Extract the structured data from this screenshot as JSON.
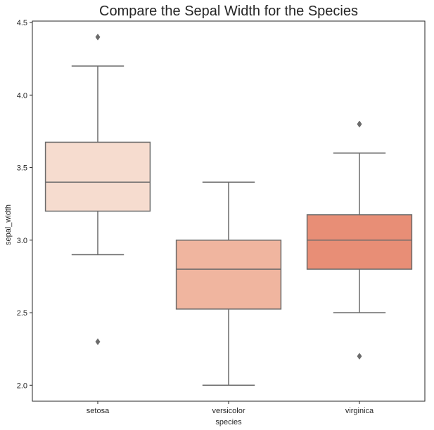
{
  "chart_data": {
    "type": "box",
    "title": "Compare the Sepal Width for the Species",
    "xlabel": "species",
    "ylabel": "sepal_width",
    "ylim": [
      1.89,
      4.51
    ],
    "yticks": [
      2.0,
      2.5,
      3.0,
      3.5,
      4.0,
      4.5
    ],
    "ytick_labels": [
      "2.0",
      "2.5",
      "3.0",
      "3.5",
      "4.0",
      "4.5"
    ],
    "grid": false,
    "categories": [
      "setosa",
      "versicolor",
      "virginica"
    ],
    "boxes": [
      {
        "name": "setosa",
        "whisker_low": 2.9,
        "q1": 3.2,
        "median": 3.4,
        "q3": 3.675,
        "whisker_high": 4.2,
        "outliers": [
          4.4,
          2.3
        ],
        "color": "#f6dccf"
      },
      {
        "name": "versicolor",
        "whisker_low": 2.0,
        "q1": 2.525,
        "median": 2.8,
        "q3": 3.0,
        "whisker_high": 3.4,
        "outliers": [],
        "color": "#f0b59f"
      },
      {
        "name": "virginica",
        "whisker_low": 2.5,
        "q1": 2.8,
        "median": 3.0,
        "q3": 3.175,
        "whisker_high": 3.6,
        "outliers": [
          3.8,
          3.8,
          2.2
        ],
        "color": "#e88e76"
      }
    ],
    "line_color": "#6b6b6b"
  }
}
